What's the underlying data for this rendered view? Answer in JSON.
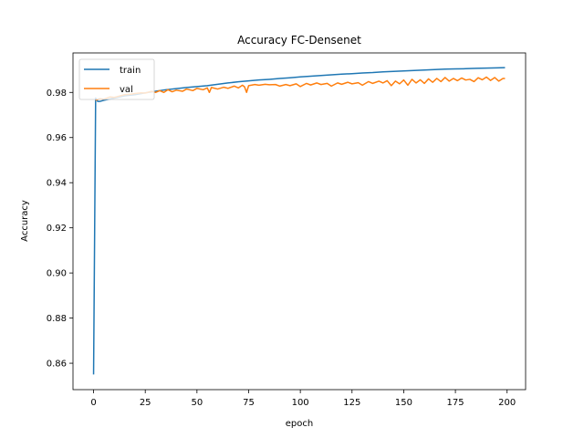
{
  "chart_data": {
    "type": "line",
    "title": "Accuracy FC-Densenet",
    "xlabel": "epoch",
    "ylabel": "Accuracy",
    "xlim": [
      -9.95,
      208.95
    ],
    "ylim": [
      0.8483,
      0.9975
    ],
    "xticks": [
      0,
      25,
      50,
      75,
      100,
      125,
      150,
      175,
      200
    ],
    "xtick_labels": [
      "0",
      "25",
      "50",
      "75",
      "100",
      "125",
      "150",
      "175",
      "200"
    ],
    "yticks": [
      0.86,
      0.88,
      0.9,
      0.92,
      0.94,
      0.96,
      0.98
    ],
    "ytick_labels": [
      "0.86",
      "0.88",
      "0.90",
      "0.92",
      "0.94",
      "0.96",
      "0.98"
    ],
    "grid": false,
    "legend_position": "top-left",
    "series": [
      {
        "name": "train",
        "color": "#1f77b4",
        "x": [
          0,
          1,
          2,
          3,
          5,
          10,
          15,
          20,
          25,
          30,
          35,
          40,
          45,
          50,
          55,
          60,
          65,
          70,
          75,
          80,
          85,
          90,
          95,
          100,
          105,
          110,
          115,
          120,
          125,
          130,
          135,
          140,
          145,
          150,
          155,
          160,
          165,
          170,
          175,
          180,
          185,
          190,
          195,
          199
        ],
        "y": [
          0.855,
          0.9775,
          0.976,
          0.976,
          0.9765,
          0.9775,
          0.9785,
          0.979,
          0.9798,
          0.9805,
          0.9812,
          0.9817,
          0.9822,
          0.9826,
          0.983,
          0.9836,
          0.9842,
          0.9847,
          0.9851,
          0.9855,
          0.9858,
          0.9862,
          0.9865,
          0.9869,
          0.9872,
          0.9875,
          0.9878,
          0.9881,
          0.9883,
          0.9886,
          0.9888,
          0.9891,
          0.9893,
          0.9895,
          0.9897,
          0.9899,
          0.9901,
          0.9903,
          0.9904,
          0.9905,
          0.9907,
          0.9908,
          0.9909,
          0.991
        ]
      },
      {
        "name": "val",
        "color": "#ff7f0e",
        "x": [
          1,
          3,
          5,
          8,
          10,
          13,
          15,
          18,
          20,
          23,
          25,
          28,
          30,
          32,
          34,
          36,
          38,
          40,
          43,
          45,
          48,
          50,
          53,
          55,
          56,
          57,
          60,
          63,
          65,
          68,
          70,
          72,
          73,
          74,
          75,
          78,
          80,
          83,
          85,
          88,
          90,
          93,
          95,
          98,
          100,
          103,
          105,
          108,
          110,
          113,
          115,
          118,
          120,
          123,
          125,
          128,
          130,
          133,
          135,
          138,
          140,
          142,
          144,
          146,
          148,
          150,
          152,
          154,
          156,
          158,
          160,
          162,
          164,
          166,
          168,
          170,
          172,
          174,
          176,
          178,
          180,
          182,
          184,
          186,
          188,
          190,
          192,
          194,
          196,
          198,
          199
        ],
        "y": [
          0.9765,
          0.9772,
          0.977,
          0.978,
          0.9778,
          0.9785,
          0.979,
          0.9792,
          0.9795,
          0.9798,
          0.9797,
          0.9805,
          0.98,
          0.9808,
          0.98,
          0.9812,
          0.9803,
          0.981,
          0.9805,
          0.9815,
          0.9808,
          0.9818,
          0.9812,
          0.982,
          0.98,
          0.9822,
          0.9815,
          0.9823,
          0.9818,
          0.9828,
          0.982,
          0.9832,
          0.9825,
          0.98,
          0.983,
          0.9835,
          0.9832,
          0.9836,
          0.9834,
          0.9835,
          0.9828,
          0.9835,
          0.983,
          0.9838,
          0.9826,
          0.984,
          0.9833,
          0.9842,
          0.9835,
          0.984,
          0.9828,
          0.9842,
          0.9836,
          0.9845,
          0.9838,
          0.9843,
          0.9832,
          0.9848,
          0.984,
          0.985,
          0.9842,
          0.9852,
          0.983,
          0.985,
          0.9838,
          0.9855,
          0.9832,
          0.9858,
          0.9842,
          0.9856,
          0.984,
          0.986,
          0.9845,
          0.9862,
          0.9848,
          0.9866,
          0.985,
          0.9862,
          0.9852,
          0.9864,
          0.9855,
          0.9858,
          0.9848,
          0.9865,
          0.9856,
          0.9868,
          0.9853,
          0.9866,
          0.985,
          0.9862,
          0.9862
        ]
      }
    ]
  }
}
